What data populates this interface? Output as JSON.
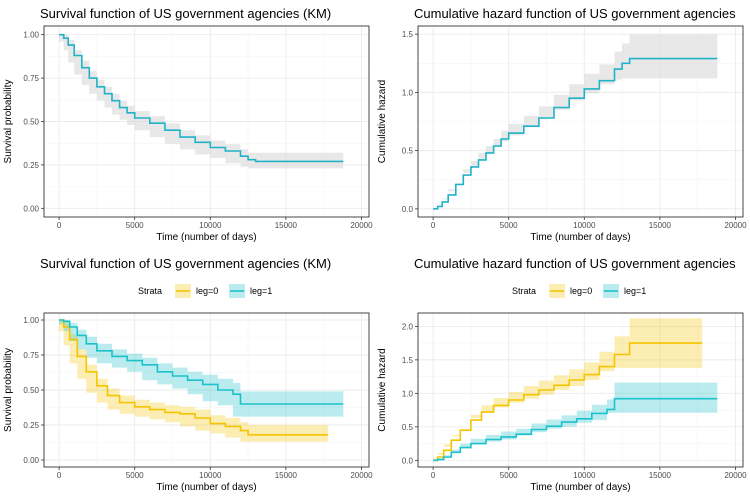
{
  "colors": {
    "single": "#20B2C8",
    "leg0": "#F5C400",
    "leg1": "#1CC1CB",
    "band_single": "#d9d9d9",
    "grid_major": "#ebebeb",
    "grid_minor": "#f4f4f4",
    "panel_border": "#333333"
  },
  "chart_data": [
    {
      "id": "surv-single",
      "type": "line",
      "title": "Survival function of US government agencies (KM)",
      "xlabel": "Time (number of days)",
      "ylabel": "Survival probability",
      "xlim": [
        -1000,
        20500
      ],
      "ylim": [
        -0.05,
        1.05
      ],
      "xticks": [
        0,
        5000,
        10000,
        15000,
        20000
      ],
      "yticks": [
        0,
        0.25,
        0.5,
        0.75,
        1
      ],
      "ytick_labels": [
        "0.00",
        "0.25",
        "0.50",
        "0.75",
        "1.00"
      ],
      "series": [
        {
          "color_key": "single",
          "x": [
            0,
            300,
            600,
            1000,
            1500,
            2000,
            2500,
            3000,
            3500,
            4000,
            4500,
            5000,
            6000,
            7000,
            8000,
            9000,
            10000,
            11000,
            12000,
            12500,
            13000,
            18800
          ],
          "y": [
            1.0,
            0.98,
            0.94,
            0.88,
            0.81,
            0.75,
            0.7,
            0.66,
            0.62,
            0.58,
            0.55,
            0.52,
            0.49,
            0.45,
            0.41,
            0.38,
            0.35,
            0.33,
            0.3,
            0.28,
            0.27,
            0.27
          ],
          "lower": [
            1.0,
            0.96,
            0.91,
            0.84,
            0.77,
            0.71,
            0.66,
            0.62,
            0.58,
            0.54,
            0.51,
            0.48,
            0.45,
            0.41,
            0.37,
            0.34,
            0.31,
            0.29,
            0.26,
            0.24,
            0.23,
            0.23
          ],
          "upper": [
            1.0,
            1.0,
            0.97,
            0.91,
            0.85,
            0.79,
            0.74,
            0.7,
            0.66,
            0.62,
            0.59,
            0.56,
            0.53,
            0.49,
            0.45,
            0.42,
            0.39,
            0.37,
            0.34,
            0.32,
            0.32,
            0.32
          ]
        }
      ]
    },
    {
      "id": "haz-single",
      "type": "line",
      "title": "Cumulative hazard function of US government agencies",
      "xlabel": "Time (number of days)",
      "ylabel": "Cumulative hazard",
      "xlim": [
        -1000,
        20500
      ],
      "ylim": [
        -0.07,
        1.57
      ],
      "xticks": [
        0,
        5000,
        10000,
        15000,
        20000
      ],
      "yticks": [
        0,
        0.5,
        1,
        1.5
      ],
      "ytick_labels": [
        "0.0",
        "0.5",
        "1.0",
        "1.5"
      ],
      "series": [
        {
          "color_key": "single",
          "x": [
            0,
            300,
            600,
            1000,
            1500,
            2000,
            2500,
            3000,
            3500,
            4000,
            4500,
            5000,
            6000,
            7000,
            8000,
            9000,
            10000,
            11000,
            12000,
            12500,
            13000,
            18800
          ],
          "y": [
            0.0,
            0.02,
            0.06,
            0.12,
            0.21,
            0.29,
            0.36,
            0.42,
            0.48,
            0.54,
            0.6,
            0.65,
            0.71,
            0.78,
            0.87,
            0.95,
            1.03,
            1.1,
            1.2,
            1.25,
            1.29,
            1.29
          ],
          "lower": [
            0.0,
            0.01,
            0.04,
            0.09,
            0.17,
            0.25,
            0.31,
            0.37,
            0.43,
            0.48,
            0.53,
            0.58,
            0.63,
            0.7,
            0.78,
            0.85,
            0.93,
            0.99,
            1.07,
            1.11,
            1.12,
            1.12
          ],
          "upper": [
            0.0,
            0.03,
            0.08,
            0.15,
            0.25,
            0.34,
            0.41,
            0.48,
            0.54,
            0.6,
            0.67,
            0.73,
            0.8,
            0.88,
            0.98,
            1.07,
            1.16,
            1.24,
            1.35,
            1.42,
            1.5,
            1.5
          ]
        }
      ]
    },
    {
      "id": "surv-strata",
      "type": "line",
      "title": "Survival function of US government agencies (KM)",
      "xlabel": "Time (number of days)",
      "ylabel": "Survival probability",
      "legend_title": "Strata",
      "legend_position": "top",
      "xlim": [
        -1000,
        20500
      ],
      "ylim": [
        -0.05,
        1.05
      ],
      "xticks": [
        0,
        5000,
        10000,
        15000,
        20000
      ],
      "yticks": [
        0,
        0.25,
        0.5,
        0.75,
        1
      ],
      "ytick_labels": [
        "0.00",
        "0.25",
        "0.50",
        "0.75",
        "1.00"
      ],
      "series": [
        {
          "name": "leg=0",
          "color_key": "leg0",
          "x": [
            0,
            300,
            700,
            1200,
            1800,
            2500,
            3200,
            4000,
            5000,
            6000,
            7000,
            8000,
            9000,
            10000,
            11000,
            12000,
            12500,
            17800
          ],
          "y": [
            1.0,
            0.95,
            0.86,
            0.74,
            0.63,
            0.53,
            0.46,
            0.41,
            0.38,
            0.36,
            0.34,
            0.33,
            0.3,
            0.26,
            0.24,
            0.21,
            0.18,
            0.18
          ],
          "lower": [
            1.0,
            0.92,
            0.82,
            0.69,
            0.58,
            0.48,
            0.41,
            0.36,
            0.33,
            0.31,
            0.29,
            0.27,
            0.24,
            0.21,
            0.19,
            0.16,
            0.13,
            0.13
          ],
          "upper": [
            1.0,
            0.98,
            0.9,
            0.79,
            0.68,
            0.58,
            0.51,
            0.46,
            0.43,
            0.41,
            0.39,
            0.38,
            0.36,
            0.32,
            0.3,
            0.27,
            0.25,
            0.25
          ]
        },
        {
          "name": "leg=1",
          "color_key": "leg1",
          "x": [
            0,
            300,
            700,
            1200,
            1800,
            2500,
            3500,
            4500,
            5500,
            6500,
            7500,
            8500,
            9500,
            10500,
            11500,
            12000,
            18800
          ],
          "y": [
            1.0,
            0.99,
            0.95,
            0.89,
            0.83,
            0.78,
            0.74,
            0.71,
            0.68,
            0.63,
            0.6,
            0.57,
            0.54,
            0.5,
            0.47,
            0.4,
            0.4
          ],
          "lower": [
            1.0,
            0.97,
            0.92,
            0.85,
            0.79,
            0.73,
            0.69,
            0.66,
            0.63,
            0.57,
            0.54,
            0.51,
            0.47,
            0.42,
            0.39,
            0.31,
            0.31
          ],
          "upper": [
            1.0,
            1.0,
            0.98,
            0.93,
            0.88,
            0.83,
            0.79,
            0.76,
            0.73,
            0.69,
            0.66,
            0.63,
            0.61,
            0.58,
            0.55,
            0.49,
            0.49
          ]
        }
      ]
    },
    {
      "id": "haz-strata",
      "type": "line",
      "title": "Cumulative hazard function of US government agencies",
      "xlabel": "Time (number of days)",
      "ylabel": "Cumulative hazard",
      "legend_title": "Strata",
      "legend_position": "top",
      "xlim": [
        -1000,
        20500
      ],
      "ylim": [
        -0.1,
        2.2
      ],
      "xticks": [
        0,
        5000,
        10000,
        15000,
        20000
      ],
      "yticks": [
        0,
        0.5,
        1,
        1.5,
        2
      ],
      "ytick_labels": [
        "0.0",
        "0.5",
        "1.0",
        "1.5",
        "2.0"
      ],
      "series": [
        {
          "name": "leg=0",
          "color_key": "leg0",
          "x": [
            0,
            300,
            700,
            1200,
            1800,
            2500,
            3200,
            4000,
            5000,
            6000,
            7000,
            8000,
            9000,
            10000,
            11000,
            12000,
            13000,
            17800
          ],
          "y": [
            0.0,
            0.05,
            0.15,
            0.3,
            0.45,
            0.6,
            0.72,
            0.82,
            0.9,
            0.98,
            1.05,
            1.12,
            1.2,
            1.28,
            1.4,
            1.58,
            1.75,
            1.75
          ],
          "lower": [
            0.0,
            0.03,
            0.11,
            0.24,
            0.38,
            0.52,
            0.63,
            0.72,
            0.79,
            0.86,
            0.92,
            0.98,
            1.05,
            1.11,
            1.2,
            1.33,
            1.38,
            1.38
          ],
          "upper": [
            0.0,
            0.08,
            0.2,
            0.36,
            0.52,
            0.68,
            0.82,
            0.93,
            1.02,
            1.11,
            1.19,
            1.27,
            1.36,
            1.46,
            1.62,
            1.85,
            2.12,
            2.12
          ]
        },
        {
          "name": "leg=1",
          "color_key": "leg1",
          "x": [
            0,
            300,
            700,
            1200,
            1800,
            2500,
            3500,
            4500,
            5500,
            6500,
            7500,
            8500,
            9500,
            10500,
            11500,
            12000,
            18800
          ],
          "y": [
            0.0,
            0.01,
            0.05,
            0.12,
            0.19,
            0.25,
            0.31,
            0.35,
            0.39,
            0.46,
            0.51,
            0.57,
            0.62,
            0.7,
            0.76,
            0.92,
            0.92
          ],
          "lower": [
            0.0,
            0.0,
            0.02,
            0.07,
            0.13,
            0.19,
            0.24,
            0.28,
            0.31,
            0.37,
            0.42,
            0.47,
            0.5,
            0.56,
            0.6,
            0.71,
            0.71
          ],
          "upper": [
            0.0,
            0.03,
            0.08,
            0.16,
            0.25,
            0.32,
            0.38,
            0.43,
            0.47,
            0.55,
            0.61,
            0.67,
            0.74,
            0.83,
            0.91,
            1.16,
            1.16
          ]
        }
      ]
    }
  ]
}
